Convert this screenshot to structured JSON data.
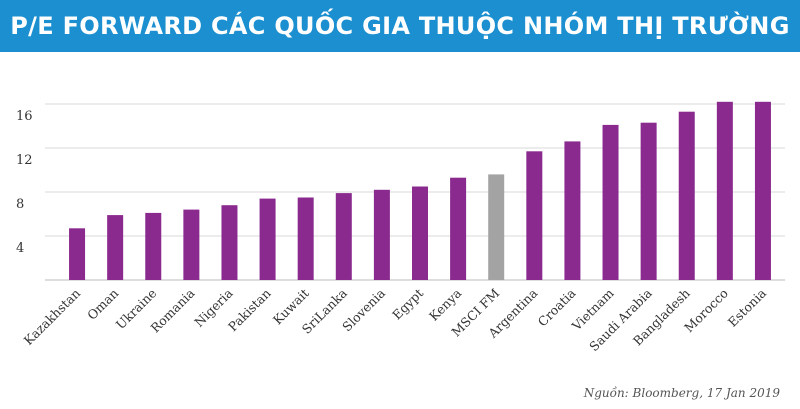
{
  "chart_data": {
    "type": "bar",
    "title": "P/E FORWARD CÁC QUỐC GIA THUỘC NHÓM THỊ TRƯỜNG CẬN BIÊN",
    "categories": [
      "Kazakhstan",
      "Oman",
      "Ukraine",
      "Romania",
      "Nigeria",
      "Pakistan",
      "Kuwait",
      "SriLanka",
      "Slovenia",
      "Egypt",
      "Kenya",
      "MSCI FM",
      "Argentina",
      "Croatia",
      "Vietnam",
      "Saudi Arabia",
      "Bangladesh",
      "Morocco",
      "Estonia"
    ],
    "values": [
      4.7,
      5.9,
      6.1,
      6.4,
      6.8,
      7.4,
      7.5,
      7.9,
      8.2,
      8.5,
      9.3,
      9.6,
      11.7,
      12.6,
      14.1,
      14.3,
      15.3,
      16.2,
      16.2
    ],
    "colors": [
      "#8a2a8e",
      "#8a2a8e",
      "#8a2a8e",
      "#8a2a8e",
      "#8a2a8e",
      "#8a2a8e",
      "#8a2a8e",
      "#8a2a8e",
      "#8a2a8e",
      "#8a2a8e",
      "#8a2a8e",
      "#a3a3a3",
      "#8a2a8e",
      "#8a2a8e",
      "#8a2a8e",
      "#8a2a8e",
      "#8a2a8e",
      "#8a2a8e",
      "#8a2a8e"
    ],
    "ylim": [
      0,
      17
    ],
    "yticks": [
      4,
      8,
      12,
      16
    ],
    "grid": true,
    "source": "Nguồn: Bloomberg, 17 Jan 2019"
  }
}
